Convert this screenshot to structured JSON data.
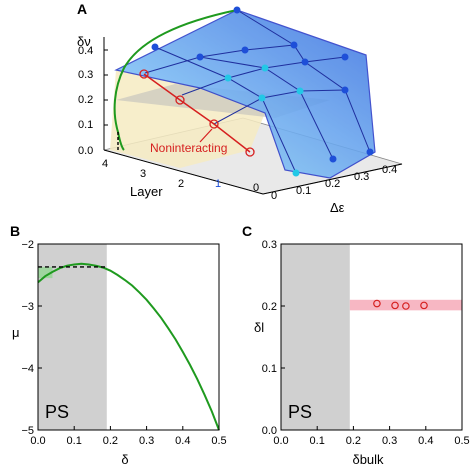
{
  "colors": {
    "green": "#1f9a1f",
    "red": "#d62020",
    "blue_point": "#1e4fd8",
    "cyan_point": "#22c8e6",
    "surface_dark": "#3a6fe0",
    "surface_light": "#9fe6ff",
    "ps_gray": "#d0d0d0",
    "pink_band": "#f7b7c3",
    "layer_one": "#1e4fd8"
  },
  "chart_data": [
    {
      "panel": "A",
      "type": "surface",
      "zlabel": "δν",
      "xlabel": "Δε",
      "ylabel": "Layer",
      "z_ticks": [
        "0.0",
        "0.1",
        "0.2",
        "0.3",
        "0.4"
      ],
      "x_ticks": [
        "0",
        "0.1",
        "0.2",
        "0.3",
        "0.4"
      ],
      "y_ticks": [
        "0",
        "1",
        "2",
        "3",
        "4"
      ],
      "annotation": "Noninteracting",
      "noninteracting_points": [
        {
          "layer": 0,
          "delta_v": 0.0
        },
        {
          "layer": 1,
          "delta_v": 0.1
        },
        {
          "layer": 2,
          "delta_v": 0.2
        },
        {
          "layer": 3,
          "delta_v": 0.3
        }
      ],
      "zlim": [
        0,
        0.45
      ],
      "xlim": [
        0,
        0.4
      ],
      "ylim": [
        0,
        4
      ]
    },
    {
      "panel": "B",
      "type": "line",
      "xlabel": "δ",
      "ylabel": "μ",
      "xlim": [
        0.0,
        0.5
      ],
      "ylim": [
        -5,
        -2
      ],
      "x_ticks": [
        "0.0",
        "0.1",
        "0.2",
        "0.3",
        "0.4",
        "0.5"
      ],
      "y_ticks": [
        "−2",
        "−3",
        "−4",
        "−5"
      ],
      "ps_region": [
        0.0,
        0.19
      ],
      "ps_label": "PS",
      "maxwell_line": {
        "mu": -2.37,
        "x_start": 0.0,
        "x_end": 0.19
      },
      "series": [
        {
          "x": [
            0.0,
            0.02,
            0.04,
            0.06,
            0.08,
            0.1,
            0.12,
            0.14,
            0.16,
            0.18,
            0.2,
            0.22,
            0.24,
            0.26,
            0.28,
            0.3,
            0.32,
            0.34,
            0.36,
            0.38,
            0.4,
            0.42,
            0.44,
            0.46,
            0.48,
            0.5
          ],
          "y": [
            -2.62,
            -2.52,
            -2.45,
            -2.39,
            -2.35,
            -2.33,
            -2.32,
            -2.33,
            -2.35,
            -2.38,
            -2.43,
            -2.5,
            -2.58,
            -2.67,
            -2.78,
            -2.9,
            -3.04,
            -3.19,
            -3.36,
            -3.54,
            -3.74,
            -3.95,
            -4.18,
            -4.43,
            -4.7,
            -5.0
          ]
        }
      ]
    },
    {
      "panel": "C",
      "type": "scatter",
      "xlabel": "δbulk",
      "ylabel": "δl",
      "xlim": [
        0.0,
        0.5
      ],
      "ylim": [
        0.0,
        0.3
      ],
      "x_ticks": [
        "0.0",
        "0.1",
        "0.2",
        "0.3",
        "0.4",
        "0.5"
      ],
      "y_ticks": [
        "0.3",
        "0.2",
        "0.1",
        "0.0"
      ],
      "ps_region": [
        0.0,
        0.19
      ],
      "ps_label": "PS",
      "band": [
        0.193,
        0.21
      ],
      "points": [
        {
          "x": 0.265,
          "y": 0.204
        },
        {
          "x": 0.315,
          "y": 0.201
        },
        {
          "x": 0.345,
          "y": 0.2
        },
        {
          "x": 0.395,
          "y": 0.201
        }
      ]
    }
  ]
}
